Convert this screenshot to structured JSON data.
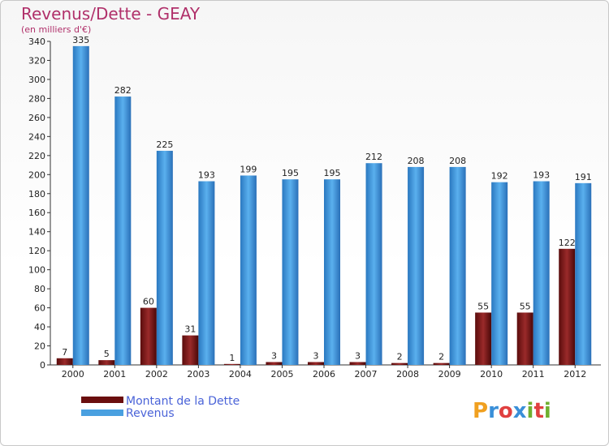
{
  "chart_data": {
    "type": "bar",
    "title": "Revenus/Dette - GEAY",
    "subtitle": "(en milliers d'€)",
    "categories": [
      "2000",
      "2001",
      "2002",
      "2003",
      "2004",
      "2005",
      "2006",
      "2007",
      "2008",
      "2009",
      "2010",
      "2011",
      "2012"
    ],
    "series": [
      {
        "name": "Montant de la Dette",
        "values": [
          7,
          5,
          60,
          31,
          1,
          3,
          3,
          3,
          2,
          2,
          55,
          55,
          122
        ],
        "color": "#7a1a1a"
      },
      {
        "name": "Revenus",
        "values": [
          335,
          282,
          225,
          193,
          199,
          195,
          195,
          212,
          208,
          208,
          192,
          193,
          191
        ],
        "color": "#4aa0e0"
      }
    ],
    "ylim": [
      0,
      340
    ],
    "yticks": [
      0,
      20,
      40,
      60,
      80,
      100,
      120,
      140,
      160,
      180,
      200,
      220,
      240,
      260,
      280,
      300,
      320,
      340
    ],
    "grid": false,
    "legend": "bottom-left"
  },
  "logo": {
    "letters": [
      "P",
      "r",
      "o",
      "x",
      "i",
      "t",
      "i"
    ],
    "colors": [
      "#f0a020",
      "#3a8fd8",
      "#e04040",
      "#3a8fd8",
      "#70b030",
      "#e04040",
      "#70b030"
    ]
  }
}
